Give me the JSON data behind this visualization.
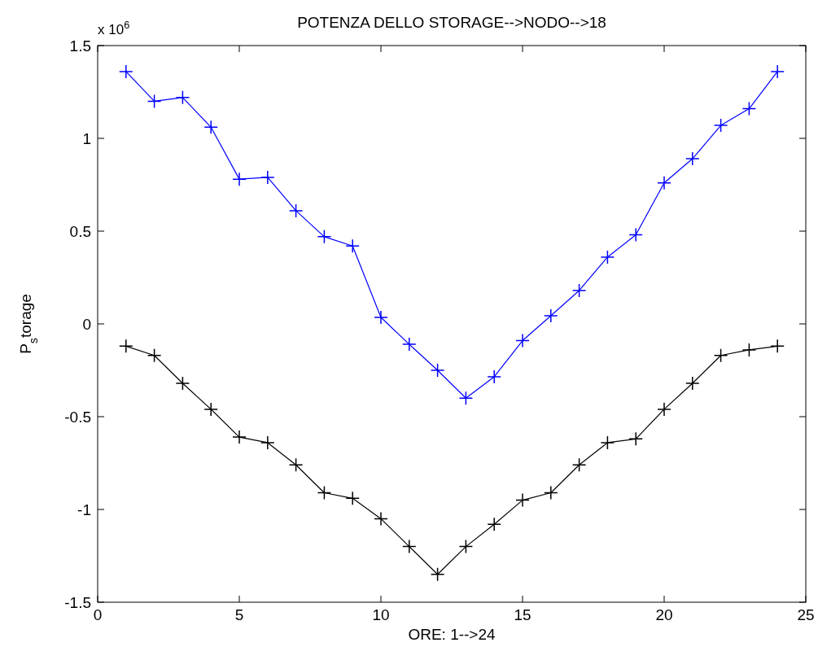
{
  "chart_data": {
    "type": "line",
    "title": "POTENZA DELLO STORAGE-->NODO-->18",
    "xlabel": "ORE: 1-->24",
    "ylabel": "P$_{s}$torage",
    "annotations": [
      "x 10$^{6}$"
    ],
    "x": [
      1,
      2,
      3,
      4,
      5,
      6,
      7,
      8,
      9,
      10,
      11,
      12,
      13,
      14,
      15,
      16,
      17,
      18,
      19,
      20,
      21,
      22,
      23,
      24
    ],
    "series": [
      {
        "color": "#0000ff",
        "values": [
          1.36,
          1.2,
          1.22,
          1.06,
          0.78,
          0.79,
          0.61,
          0.47,
          0.42,
          0.035,
          -0.11,
          -0.25,
          -0.4,
          -0.285,
          -0.09,
          0.044,
          0.18,
          0.36,
          0.48,
          0.76,
          0.89,
          1.07,
          1.16,
          1.36
        ]
      },
      {
        "color": "#000000",
        "values": [
          -0.12,
          -0.17,
          -0.32,
          -0.46,
          -0.61,
          -0.64,
          -0.76,
          -0.91,
          -0.94,
          -1.05,
          -1.2,
          -1.35,
          -1.2,
          -1.08,
          -0.95,
          -0.91,
          -0.76,
          -0.64,
          -0.62,
          -0.46,
          -0.32,
          -0.17,
          -0.14,
          -0.12
        ]
      }
    ],
    "xlim": [
      0,
      25
    ],
    "xticks": [
      0,
      5,
      10,
      15,
      20,
      25
    ],
    "ylim": [
      -1.5,
      1.5
    ],
    "yticks": [
      -1.5,
      -1,
      -0.5,
      0,
      0.5,
      1,
      1.5
    ],
    "grid": false,
    "marker": "cross",
    "line_style": "solid"
  }
}
